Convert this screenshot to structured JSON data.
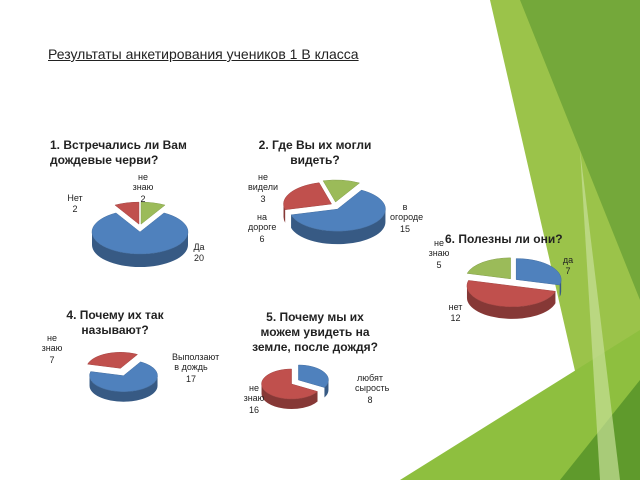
{
  "slide_title": "Результаты анкетирования учеников 1 В класса",
  "chart_data": [
    {
      "type": "pie",
      "title": "1. Встречались ли Вам дождевые черви?",
      "categories": [
        "Да",
        "Нет",
        "не знаю"
      ],
      "values": [
        20,
        2,
        2
      ],
      "colors": [
        "#4f81bd",
        "#c0504d",
        "#9bbb59"
      ]
    },
    {
      "type": "pie",
      "title": "2. Где Вы их могли видеть?",
      "categories": [
        "в огороде",
        "на дороге",
        "не видели"
      ],
      "values": [
        15,
        6,
        3
      ],
      "colors": [
        "#4f81bd",
        "#c0504d",
        "#9bbb59"
      ]
    },
    {
      "type": "pie",
      "title": "6. Полезны ли они?",
      "categories": [
        "да",
        "нет",
        "не знаю"
      ],
      "values": [
        7,
        12,
        5
      ],
      "colors": [
        "#4f81bd",
        "#c0504d",
        "#9bbb59"
      ]
    },
    {
      "type": "pie",
      "title": "4. Почему их так называют?",
      "categories": [
        "Выползают в дождь",
        "не знаю"
      ],
      "values": [
        17,
        7
      ],
      "colors": [
        "#4f81bd",
        "#c0504d"
      ]
    },
    {
      "type": "pie",
      "title": "5. Почему мы их можем увидеть на земле, после дождя?",
      "categories": [
        "любят сырость",
        "не знаю"
      ],
      "values": [
        8,
        16
      ],
      "colors": [
        "#4f81bd",
        "#c0504d"
      ]
    }
  ]
}
